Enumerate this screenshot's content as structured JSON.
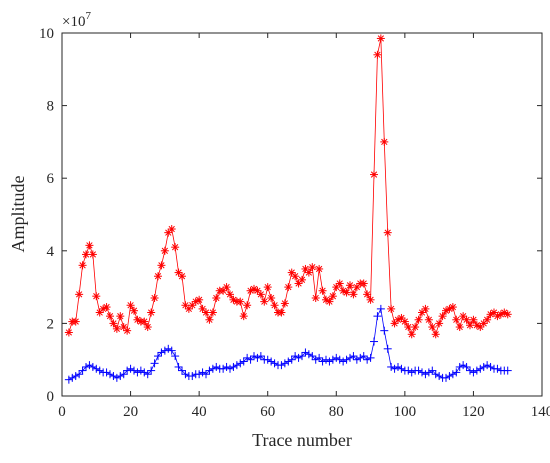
{
  "chart_data": {
    "type": "line",
    "xlabel": "Trace number",
    "ylabel": "Amplitude",
    "y_scale_base": "×10",
    "y_scale_exponent": "7",
    "xlim": [
      0,
      140
    ],
    "xticks": [
      0,
      20,
      40,
      60,
      80,
      100,
      120,
      140
    ],
    "ylim": [
      0,
      10
    ],
    "yticks": [
      0,
      2,
      4,
      6,
      8,
      10
    ],
    "grid": false,
    "x": [
      2,
      3,
      4,
      5,
      6,
      7,
      8,
      9,
      10,
      11,
      12,
      13,
      14,
      15,
      16,
      17,
      18,
      19,
      20,
      21,
      22,
      23,
      24,
      25,
      26,
      27,
      28,
      29,
      30,
      31,
      32,
      33,
      34,
      35,
      36,
      37,
      38,
      39,
      40,
      41,
      42,
      43,
      44,
      45,
      46,
      47,
      48,
      49,
      50,
      51,
      52,
      53,
      54,
      55,
      56,
      57,
      58,
      59,
      60,
      61,
      62,
      63,
      64,
      65,
      66,
      67,
      68,
      69,
      70,
      71,
      72,
      73,
      74,
      75,
      76,
      77,
      78,
      79,
      80,
      81,
      82,
      83,
      84,
      85,
      86,
      87,
      88,
      89,
      90,
      91,
      92,
      93,
      94,
      95,
      96,
      97,
      98,
      99,
      100,
      101,
      102,
      103,
      104,
      105,
      106,
      107,
      108,
      109,
      110,
      111,
      112,
      113,
      114,
      115,
      116,
      117,
      118,
      119,
      120,
      121,
      122,
      123,
      124,
      125,
      126,
      127,
      128,
      129,
      130
    ],
    "series": [
      {
        "color": "#ff0000",
        "marker": "asterisk",
        "values": [
          1.75,
          2.05,
          2.05,
          2.8,
          3.6,
          3.9,
          4.15,
          3.9,
          2.75,
          2.3,
          2.4,
          2.45,
          2.2,
          2.0,
          1.85,
          2.2,
          1.9,
          1.8,
          2.5,
          2.35,
          2.1,
          2.05,
          2.05,
          1.9,
          2.3,
          2.7,
          3.3,
          3.6,
          4.0,
          4.5,
          4.6,
          4.1,
          3.4,
          3.3,
          2.5,
          2.4,
          2.5,
          2.6,
          2.65,
          2.4,
          2.3,
          2.1,
          2.3,
          2.7,
          2.9,
          2.9,
          3.0,
          2.8,
          2.65,
          2.6,
          2.6,
          2.2,
          2.5,
          2.9,
          2.95,
          2.9,
          2.8,
          2.6,
          3.0,
          2.7,
          2.5,
          2.3,
          2.3,
          2.55,
          3.0,
          3.4,
          3.3,
          3.1,
          3.2,
          3.5,
          3.4,
          3.55,
          2.7,
          3.5,
          2.9,
          2.65,
          2.6,
          2.75,
          3.0,
          3.1,
          2.9,
          2.85,
          3.05,
          2.8,
          3.0,
          3.1,
          3.1,
          2.8,
          2.65,
          6.1,
          9.4,
          9.85,
          7.0,
          4.5,
          2.4,
          2.0,
          2.1,
          2.15,
          2.05,
          1.9,
          1.7,
          1.9,
          2.1,
          2.3,
          2.4,
          2.1,
          1.9,
          1.7,
          2.0,
          2.2,
          2.35,
          2.4,
          2.45,
          2.1,
          1.9,
          2.2,
          2.1,
          1.95,
          2.1,
          1.95,
          1.9,
          2.0,
          2.1,
          2.25,
          2.3,
          2.2,
          2.25,
          2.3,
          2.25
        ]
      },
      {
        "color": "#0000ff",
        "marker": "plus",
        "values": [
          0.45,
          0.5,
          0.55,
          0.6,
          0.7,
          0.8,
          0.85,
          0.8,
          0.75,
          0.7,
          0.65,
          0.65,
          0.6,
          0.55,
          0.5,
          0.55,
          0.6,
          0.7,
          0.75,
          0.7,
          0.65,
          0.7,
          0.65,
          0.6,
          0.7,
          0.9,
          1.1,
          1.2,
          1.25,
          1.3,
          1.25,
          1.1,
          0.8,
          0.7,
          0.6,
          0.55,
          0.55,
          0.6,
          0.6,
          0.65,
          0.6,
          0.7,
          0.75,
          0.8,
          0.75,
          0.75,
          0.8,
          0.75,
          0.8,
          0.85,
          0.9,
          0.95,
          1.05,
          1.0,
          1.1,
          1.05,
          1.1,
          1.0,
          1.0,
          0.95,
          0.9,
          0.85,
          0.85,
          0.9,
          0.95,
          1.0,
          1.1,
          1.05,
          1.1,
          1.2,
          1.15,
          1.1,
          1.0,
          1.05,
          0.95,
          1.0,
          0.95,
          1.0,
          1.05,
          1.0,
          0.95,
          1.0,
          1.05,
          1.1,
          1.0,
          1.05,
          1.1,
          1.0,
          1.05,
          1.5,
          2.2,
          2.4,
          1.8,
          1.3,
          0.8,
          0.75,
          0.8,
          0.75,
          0.7,
          0.7,
          0.65,
          0.7,
          0.7,
          0.65,
          0.6,
          0.65,
          0.7,
          0.6,
          0.55,
          0.5,
          0.5,
          0.55,
          0.6,
          0.65,
          0.8,
          0.85,
          0.8,
          0.7,
          0.65,
          0.7,
          0.75,
          0.8,
          0.85,
          0.8,
          0.75,
          0.75,
          0.7,
          0.7,
          0.7
        ]
      }
    ]
  }
}
